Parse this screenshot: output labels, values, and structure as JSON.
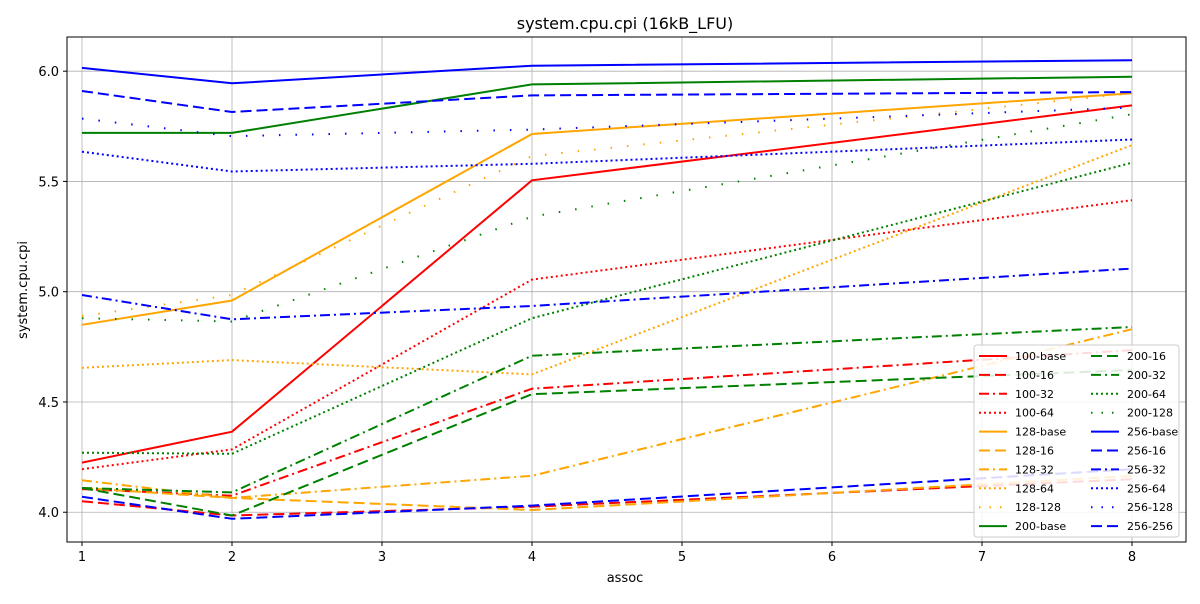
{
  "chart_data": {
    "type": "line",
    "title": "system.cpu.cpi (16kB_LFU)",
    "xlabel": "assoc",
    "ylabel": "system.cpu.cpi",
    "x": [
      1,
      2,
      4,
      8
    ],
    "x_ticks": [
      "1",
      "2",
      "3",
      "4",
      "5",
      "6",
      "7",
      "8"
    ],
    "y_ticks": [
      "4.0",
      "4.5",
      "5.0",
      "5.5",
      "6.0"
    ],
    "xlim": [
      0.9,
      8.36
    ],
    "ylim": [
      3.865,
      6.155
    ],
    "grid": true,
    "legend_position": "lower-right",
    "series": [
      {
        "name": "100-base",
        "color": "#ff0000",
        "style": "solid",
        "values": [
          4.225,
          4.365,
          5.505,
          5.845
        ]
      },
      {
        "name": "100-16",
        "color": "#ff0000",
        "style": "dashed",
        "values": [
          4.05,
          3.985,
          4.025,
          4.15
        ]
      },
      {
        "name": "100-32",
        "color": "#ff0000",
        "style": "dashdot",
        "values": [
          4.105,
          4.075,
          4.56,
          4.735
        ]
      },
      {
        "name": "100-64",
        "color": "#ff0000",
        "style": "dotted",
        "values": [
          4.195,
          4.285,
          5.055,
          5.415
        ]
      },
      {
        "name": "128-base",
        "color": "#ffa500",
        "style": "solid",
        "values": [
          4.85,
          4.96,
          5.715,
          5.9
        ]
      },
      {
        "name": "128-16",
        "color": "#ffa500",
        "style": "dashed",
        "values": [
          4.11,
          4.065,
          4.01,
          4.165
        ]
      },
      {
        "name": "128-32",
        "color": "#ffa500",
        "style": "dashdot",
        "values": [
          4.145,
          4.065,
          4.165,
          4.83
        ]
      },
      {
        "name": "128-64",
        "color": "#ffa500",
        "style": "dotted",
        "values": [
          4.655,
          4.69,
          4.625,
          5.665
        ]
      },
      {
        "name": "128-128",
        "color": "#ffa500",
        "style": "sparse",
        "values": [
          4.89,
          4.985,
          5.615,
          5.9
        ]
      },
      {
        "name": "200-base",
        "color": "#008000",
        "style": "solid",
        "values": [
          5.72,
          5.72,
          5.94,
          5.975
        ]
      },
      {
        "name": "200-16",
        "color": "#008000",
        "style": "dashed",
        "values": [
          4.11,
          3.985,
          4.535,
          4.645
        ]
      },
      {
        "name": "200-32",
        "color": "#008000",
        "style": "dashdot",
        "values": [
          4.11,
          4.09,
          4.71,
          4.84
        ]
      },
      {
        "name": "200-64",
        "color": "#008000",
        "style": "dotted",
        "values": [
          4.27,
          4.265,
          4.88,
          5.585
        ]
      },
      {
        "name": "200-128",
        "color": "#008000",
        "style": "sparse",
        "values": [
          4.88,
          4.865,
          5.34,
          5.805
        ]
      },
      {
        "name": "256-base",
        "color": "#0000ff",
        "style": "solid",
        "values": [
          6.015,
          5.945,
          6.025,
          6.05
        ]
      },
      {
        "name": "256-16",
        "color": "#0000ff",
        "style": "dashed",
        "values": [
          4.07,
          3.97,
          4.03,
          4.195
        ]
      },
      {
        "name": "256-32",
        "color": "#0000ff",
        "style": "dashdot",
        "values": [
          4.985,
          4.875,
          4.935,
          5.105
        ]
      },
      {
        "name": "256-64",
        "color": "#0000ff",
        "style": "dotted",
        "values": [
          5.635,
          5.545,
          5.58,
          5.69
        ]
      },
      {
        "name": "256-128",
        "color": "#0000ff",
        "style": "sparse",
        "values": [
          5.785,
          5.705,
          5.735,
          5.835
        ]
      },
      {
        "name": "256-256",
        "color": "#0000ff",
        "style": "dashed",
        "values": [
          5.91,
          5.815,
          5.89,
          5.905
        ]
      }
    ]
  }
}
